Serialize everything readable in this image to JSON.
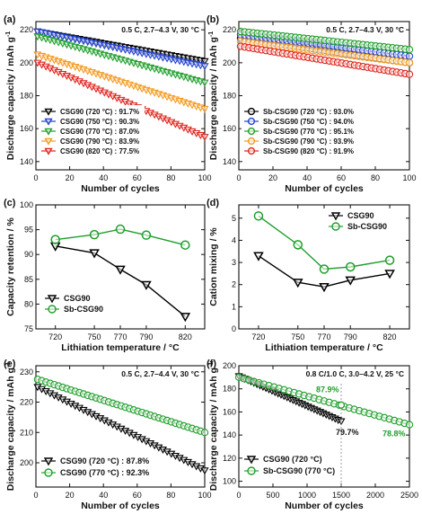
{
  "chart_data": [
    {
      "panel": "(a)",
      "type": "line",
      "condition": "0.5 C, 2.7–4.3 V, 30 °C",
      "xlabel": "Number of cycles",
      "ylabel": "Discharge capacity / mAh g⁻¹",
      "xlim": [
        0,
        100
      ],
      "ylim": [
        135,
        225
      ],
      "xticks": [
        0,
        20,
        40,
        60,
        80,
        100
      ],
      "yticks": [
        140,
        160,
        180,
        200,
        220
      ],
      "grid": false,
      "legend_position": "bottom-left",
      "series": [
        {
          "name": "CSG90 (720 °C) : 91.7%",
          "color": "#000000",
          "marker": "triangle-down",
          "x": [
            1,
            100
          ],
          "y": [
            219,
            201
          ]
        },
        {
          "name": "CSG90 (750 °C) : 90.3%",
          "color": "#1f3fd1",
          "marker": "triangle-down",
          "x": [
            1,
            100
          ],
          "y": [
            219,
            198
          ]
        },
        {
          "name": "CSG90 (770 °C) : 87.0%",
          "color": "#1e9e2a",
          "marker": "triangle-down",
          "x": [
            1,
            100
          ],
          "y": [
            216,
            188
          ]
        },
        {
          "name": "CSG90 (790 °C) : 83.9%",
          "color": "#f39a1e",
          "marker": "triangle-down",
          "x": [
            1,
            100
          ],
          "y": [
            205,
            172
          ]
        },
        {
          "name": "CSG90 (820 °C) : 77.5%",
          "color": "#e0221c",
          "marker": "triangle-down",
          "x": [
            1,
            100
          ],
          "y": [
            200,
            155
          ]
        }
      ]
    },
    {
      "panel": "(b)",
      "type": "line",
      "condition": "0.5 C, 2.7–4.3 V, 30 °C",
      "xlabel": "Number of cycles",
      "ylabel": "Discharge capacity / mAh g⁻¹",
      "xlim": [
        0,
        100
      ],
      "ylim": [
        135,
        225
      ],
      "xticks": [
        0,
        20,
        40,
        60,
        80,
        100
      ],
      "yticks": [
        140,
        160,
        180,
        200,
        220
      ],
      "grid": false,
      "legend_position": "bottom-left",
      "series": [
        {
          "name": "Sb-CSG90 (720 °C) : 93.0%",
          "color": "#000000",
          "marker": "circle",
          "x": [
            1,
            100
          ],
          "y": [
            215,
            200
          ]
        },
        {
          "name": "Sb-CSG90 (750 °C) : 94.0%",
          "color": "#1f3fd1",
          "marker": "circle",
          "x": [
            1,
            100
          ],
          "y": [
            217,
            204
          ]
        },
        {
          "name": "Sb-CSG90 (770 °C) : 95.1%",
          "color": "#1e9e2a",
          "marker": "circle",
          "x": [
            1,
            100
          ],
          "y": [
            219,
            208
          ]
        },
        {
          "name": "Sb-CSG90 (790 °C) : 93.9%",
          "color": "#f39a1e",
          "marker": "circle",
          "x": [
            1,
            100
          ],
          "y": [
            213,
            200
          ]
        },
        {
          "name": "Sb-CSG90 (820 °C) : 91.9%",
          "color": "#e0221c",
          "marker": "circle",
          "x": [
            1,
            100
          ],
          "y": [
            210,
            193
          ]
        }
      ]
    },
    {
      "panel": "(c)",
      "type": "line",
      "xlabel": "Lithiation temperature / °C",
      "ylabel": "Capacity retention / %",
      "categories": [
        "720",
        "750",
        "770",
        "790",
        "820"
      ],
      "xlim": [
        705,
        835
      ],
      "ylim": [
        75,
        100
      ],
      "xticks": [
        720,
        750,
        770,
        790,
        820
      ],
      "yticks": [
        75,
        80,
        85,
        90,
        95,
        100
      ],
      "grid": false,
      "legend_position": "bottom-left",
      "series": [
        {
          "name": "CSG90",
          "color": "#000000",
          "marker": "triangle-down",
          "x": [
            720,
            750,
            770,
            790,
            820
          ],
          "y": [
            91.7,
            90.3,
            87.0,
            83.9,
            77.5
          ]
        },
        {
          "name": "Sb-CSG90",
          "color": "#1e9e2a",
          "marker": "circle",
          "x": [
            720,
            750,
            770,
            790,
            820
          ],
          "y": [
            93.0,
            94.0,
            95.1,
            93.9,
            91.9
          ]
        }
      ]
    },
    {
      "panel": "(d)",
      "type": "line",
      "xlabel": "Lithiation temperature / °C",
      "ylabel": "Cation mixing / %",
      "categories": [
        "720",
        "750",
        "770",
        "790",
        "820"
      ],
      "xlim": [
        705,
        835
      ],
      "ylim": [
        0,
        5.6
      ],
      "xticks": [
        720,
        750,
        770,
        790,
        820
      ],
      "yticks": [
        0,
        1,
        2,
        3,
        4,
        5
      ],
      "grid": false,
      "legend_position": "top-right",
      "series": [
        {
          "name": "CSG90",
          "color": "#000000",
          "marker": "triangle-down",
          "x": [
            720,
            750,
            770,
            790,
            820
          ],
          "y": [
            3.3,
            2.1,
            1.9,
            2.2,
            2.5
          ]
        },
        {
          "name": "Sb-CSG90",
          "color": "#1e9e2a",
          "marker": "circle",
          "x": [
            720,
            750,
            770,
            790,
            820
          ],
          "y": [
            5.1,
            3.8,
            2.7,
            2.8,
            3.1
          ]
        }
      ]
    },
    {
      "panel": "(e)",
      "type": "line",
      "condition": "0.5 C, 2.7–4.4 V, 30 °C",
      "xlabel": "Number of cycles",
      "ylabel": "Discharge capacity / mAh g⁻¹",
      "xlim": [
        0,
        100
      ],
      "ylim": [
        192,
        232
      ],
      "xticks": [
        0,
        20,
        40,
        60,
        80,
        100
      ],
      "yticks": [
        200,
        210,
        220,
        230
      ],
      "grid": false,
      "legend_position": "bottom-left",
      "series": [
        {
          "name": "CSG90 (720 °C) : 87.8%",
          "color": "#000000",
          "marker": "triangle-down",
          "x": [
            1,
            100
          ],
          "y": [
            225,
            197.5
          ]
        },
        {
          "name": "CSG90 (770 °C) : 92.3%",
          "color": "#1e9e2a",
          "marker": "circle",
          "x": [
            1,
            100
          ],
          "y": [
            227.5,
            210
          ]
        }
      ]
    },
    {
      "panel": "(f)",
      "type": "line",
      "condition": "0.8 C/1.0 C, 3.0–4.2 V, 25 °C",
      "xlabel": "Number of cycles",
      "ylabel": "Discharge capacity / mAh g⁻¹",
      "xlim": [
        0,
        2500
      ],
      "ylim": [
        95,
        200
      ],
      "xticks": [
        0,
        500,
        1000,
        1500,
        2000,
        2500
      ],
      "yticks": [
        100,
        120,
        140,
        160,
        180,
        200
      ],
      "grid": false,
      "legend_position": "bottom-left",
      "annotations": [
        "87.9%",
        "79.7%",
        "78.8%"
      ],
      "series": [
        {
          "name": "CSG90 (720 °C)",
          "color": "#000000",
          "marker": "triangle-down",
          "x": [
            1,
            1500
          ],
          "y": [
            191,
            152
          ]
        },
        {
          "name": "Sb-CSG90 (770 °C)",
          "color": "#1e9e2a",
          "marker": "circle",
          "x": [
            1,
            2500
          ],
          "y": [
            190,
            149
          ]
        }
      ]
    }
  ]
}
